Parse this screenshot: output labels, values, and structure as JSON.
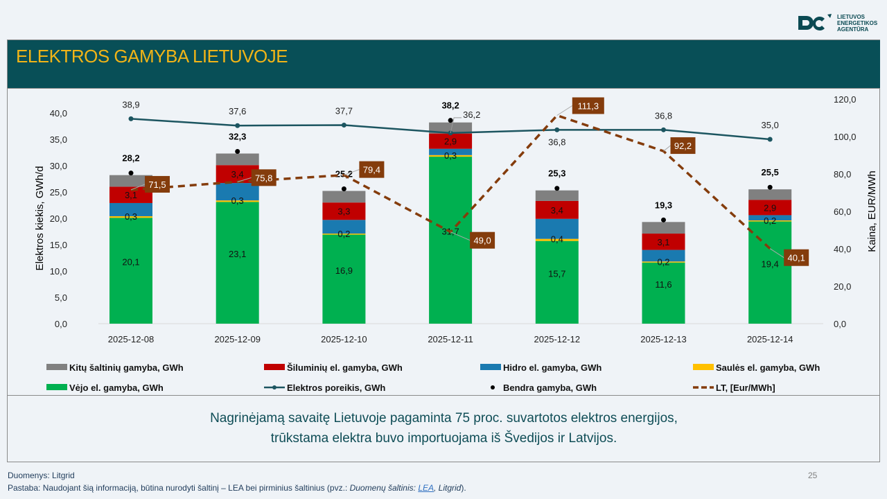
{
  "logo": {
    "line1": "LIETUVOS",
    "line2": "ENERGETIKOS",
    "line3": "AGENTŪRA",
    "brand_color": "#0b4a53"
  },
  "header": {
    "title": "ELEKTROS GAMYBA LIETUVOJE",
    "bg_color": "#084f57",
    "title_color": "#f1b417"
  },
  "chart_data": {
    "type": "bar",
    "stacked": true,
    "categories": [
      "2025-12-08",
      "2025-12-09",
      "2025-12-10",
      "2025-12-11",
      "2025-12-12",
      "2025-12-13",
      "2025-12-14"
    ],
    "ylabel": "Elektros kiekis, GWh/d",
    "y2label": "Kaina, EUR/MWh",
    "ylim": [
      0,
      40
    ],
    "yticks": [
      "0,0",
      "5,0",
      "10,0",
      "15,0",
      "20,0",
      "25,0",
      "30,0",
      "35,0",
      "40,0"
    ],
    "y2lim": [
      0,
      120
    ],
    "y2ticks": [
      "0,0",
      "20,0",
      "40,0",
      "60,0",
      "80,0",
      "100,0",
      "120,0"
    ],
    "series": [
      {
        "name": "Vėjo el. gamyba, GWh",
        "color": "#00b050",
        "values": [
          20.1,
          23.1,
          16.9,
          31.7,
          15.7,
          11.6,
          19.4
        ],
        "labels": [
          "20,1",
          "23,1",
          "16,9",
          "31,7",
          "15,7",
          "11,6",
          "19,4"
        ]
      },
      {
        "name": "Saulės el. gamyba, GWh",
        "color": "#ffc000",
        "values": [
          0.3,
          0.3,
          0.2,
          0.3,
          0.4,
          0.2,
          0.2
        ],
        "labels": [
          "0,3",
          "0,3",
          "0,2",
          "0,3",
          "0,4",
          "0,2",
          "0,2"
        ]
      },
      {
        "name": "Hidro el. gamyba, GWh",
        "color": "#1a7ab0",
        "values": [
          2.5,
          3.3,
          2.6,
          1.2,
          3.8,
          2.2,
          1.0
        ]
      },
      {
        "name": "Šiluminių el. gamyba, GWh",
        "color": "#c00000",
        "values": [
          3.1,
          3.4,
          3.3,
          2.9,
          3.4,
          3.1,
          2.9
        ],
        "labels": [
          "3,1",
          "3,4",
          "3,3",
          "2,9",
          "3,4",
          "3,1",
          "2,9"
        ]
      },
      {
        "name": "Kitų šaltinių gamyba,  GWh",
        "color": "#808080",
        "values": [
          2.2,
          2.2,
          2.2,
          2.1,
          2.0,
          2.2,
          2.0
        ]
      }
    ],
    "total": {
      "name": "Bendra gamyba, GWh",
      "values": [
        28.2,
        32.3,
        25.2,
        38.2,
        25.3,
        19.3,
        25.5
      ],
      "labels": [
        "28,2",
        "32,3",
        "25,2",
        "38,2",
        "25,3",
        "19,3",
        "25,5"
      ]
    },
    "demand": {
      "name": "Elektros poreikis, GWh",
      "color": "#1c5560",
      "values": [
        38.9,
        37.6,
        37.7,
        36.2,
        36.8,
        36.8,
        35.0
      ],
      "labels": [
        "38,9",
        "37,6",
        "37,7",
        "36,2",
        "36,8",
        "36,8",
        "35,0"
      ]
    },
    "price": {
      "name": "LT, [Eur/MWh]",
      "color": "#843c0c",
      "axis": "right",
      "values": [
        71.5,
        75.8,
        79.4,
        49.0,
        111.3,
        92.2,
        40.1
      ],
      "labels": [
        "71,5",
        "75,8",
        "79,4",
        "49,0",
        "111,3",
        "92,2",
        "40,1"
      ]
    },
    "legend": [
      {
        "label": "Kitų šaltinių gamyba,  GWh",
        "kind": "box",
        "color": "#808080"
      },
      {
        "label": "Šiluminių el. gamyba, GWh",
        "kind": "box",
        "color": "#c00000"
      },
      {
        "label": "Hidro el. gamyba, GWh",
        "kind": "box",
        "color": "#1a7ab0"
      },
      {
        "label": "Saulės el. gamyba, GWh",
        "kind": "box",
        "color": "#ffc000"
      },
      {
        "label": "Vėjo el. gamyba, GWh",
        "kind": "box",
        "color": "#00b050"
      },
      {
        "label": "Elektros poreikis, GWh",
        "kind": "line",
        "color": "#1c5560"
      },
      {
        "label": "Bendra gamyba, GWh",
        "kind": "dot",
        "color": "#000000"
      },
      {
        "label": "LT, [Eur/MWh]",
        "kind": "dash",
        "color": "#843c0c"
      }
    ],
    "legend_position": "bottom",
    "grid": false
  },
  "summary": {
    "line1": "Nagrinėjamą savaitę Lietuvoje pagaminta 75 proc. suvartotos elektros energijos,",
    "line2": "trūkstama elektra buvo importuojama iš Švedijos ir Latvijos.",
    "color": "#0f4d56"
  },
  "page_number": "25",
  "footer": {
    "source": "Duomenys: Litgrid",
    "note_prefix": "Pastaba: Naudojant šią informaciją, būtina nurodyti šaltinį – LEA bei pirminius šaltinius (pvz.: ",
    "note_italic": "Duomenų šaltinis: ",
    "note_link": "LEA",
    "note_italic2": ", Litgrid",
    "note_suffix": ")."
  }
}
